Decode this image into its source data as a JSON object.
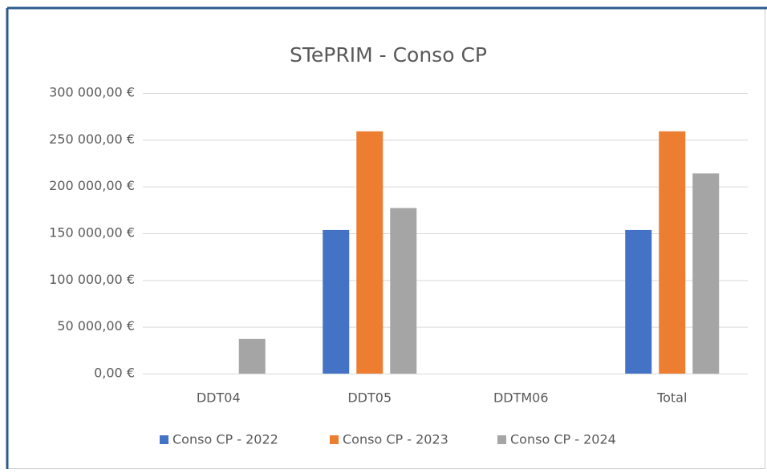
{
  "chart_data": {
    "type": "bar",
    "title": "STePRIM - Conso CP",
    "categories": [
      "DDT04",
      "DDT05",
      "DDTM06",
      "Total"
    ],
    "series": [
      {
        "name": "Conso CP - 2022",
        "color": "#4472c4",
        "values": [
          0,
          153500,
          0,
          153500
        ]
      },
      {
        "name": "Conso CP - 2023",
        "color": "#ed7d31",
        "values": [
          0,
          259000,
          0,
          259000
        ]
      },
      {
        "name": "Conso CP - 2024",
        "color": "#a5a5a5",
        "values": [
          37000,
          177000,
          0,
          214000
        ]
      }
    ],
    "ylim": [
      0,
      300000
    ],
    "yticks": [
      {
        "value": 0,
        "label": "0,00 €"
      },
      {
        "value": 50000,
        "label": "50 000,00 €"
      },
      {
        "value": 100000,
        "label": "100 000,00 €"
      },
      {
        "value": 150000,
        "label": "150 000,00 €"
      },
      {
        "value": 200000,
        "label": "200 000,00 €"
      },
      {
        "value": 250000,
        "label": "250 000,00 €"
      },
      {
        "value": 300000,
        "label": "300 000,00 €"
      }
    ],
    "grid": true,
    "legend": "bottom"
  }
}
